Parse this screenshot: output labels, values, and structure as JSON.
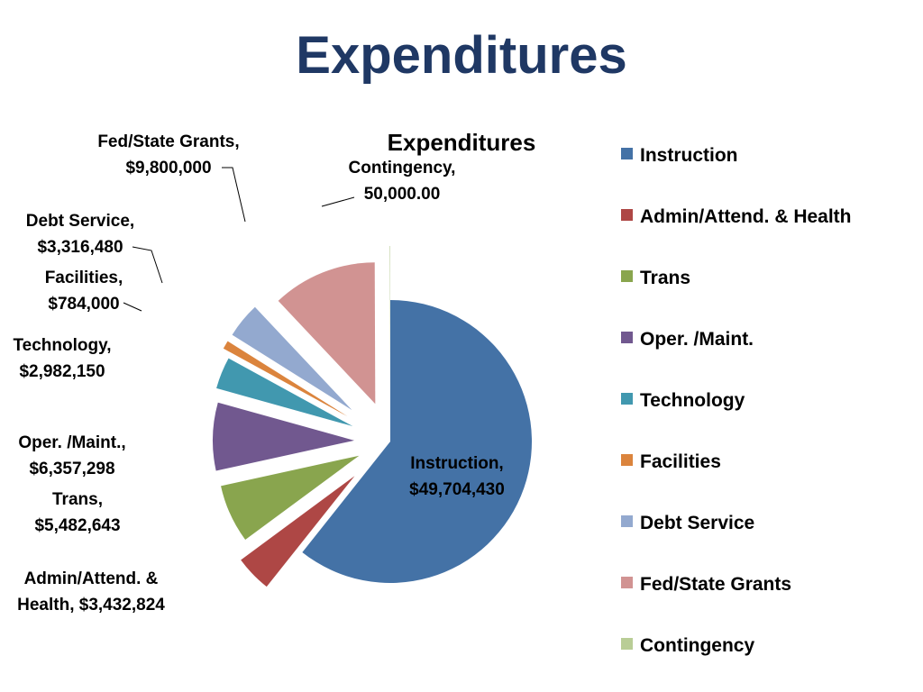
{
  "slide": {
    "title": "Expenditures"
  },
  "chart_data": {
    "type": "pie",
    "title": "Expenditures",
    "legend_position": "right",
    "exploded": true,
    "slices": [
      {
        "name": "Instruction",
        "value": 49704430,
        "label": [
          "Instruction,",
          "$49,704,430"
        ],
        "color": "#4472a6"
      },
      {
        "name": "Admin/Attend. & Health",
        "value": 3432824,
        "label": [
          "Admin/Attend. &",
          "Health,  $3,432,824"
        ],
        "color": "#ae4745"
      },
      {
        "name": "Trans",
        "value": 5482643,
        "label": [
          "Trans,",
          "$5,482,643"
        ],
        "color": "#89a54e"
      },
      {
        "name": "Oper. /Maint.",
        "value": 6357298,
        "label": [
          "Oper. /Maint.,",
          "$6,357,298"
        ],
        "color": "#71588f"
      },
      {
        "name": "Technology",
        "value": 2982150,
        "label": [
          "Technology,",
          "$2,982,150"
        ],
        "color": "#4198af"
      },
      {
        "name": "Facilities",
        "value": 784000,
        "label": [
          "Facilities,",
          "$784,000"
        ],
        "color": "#db843d"
      },
      {
        "name": "Debt Service",
        "value": 3316480,
        "label": [
          "Debt Service,",
          "$3,316,480"
        ],
        "color": "#93a9cf"
      },
      {
        "name": "Fed/State Grants",
        "value": 9800000,
        "label": [
          "Fed/State Grants,",
          "$9,800,000"
        ],
        "color": "#d19392"
      },
      {
        "name": "Contingency",
        "value": 50000,
        "label": [
          "Contingency,",
          "50,000.00"
        ],
        "color": "#b9cd96"
      }
    ]
  }
}
